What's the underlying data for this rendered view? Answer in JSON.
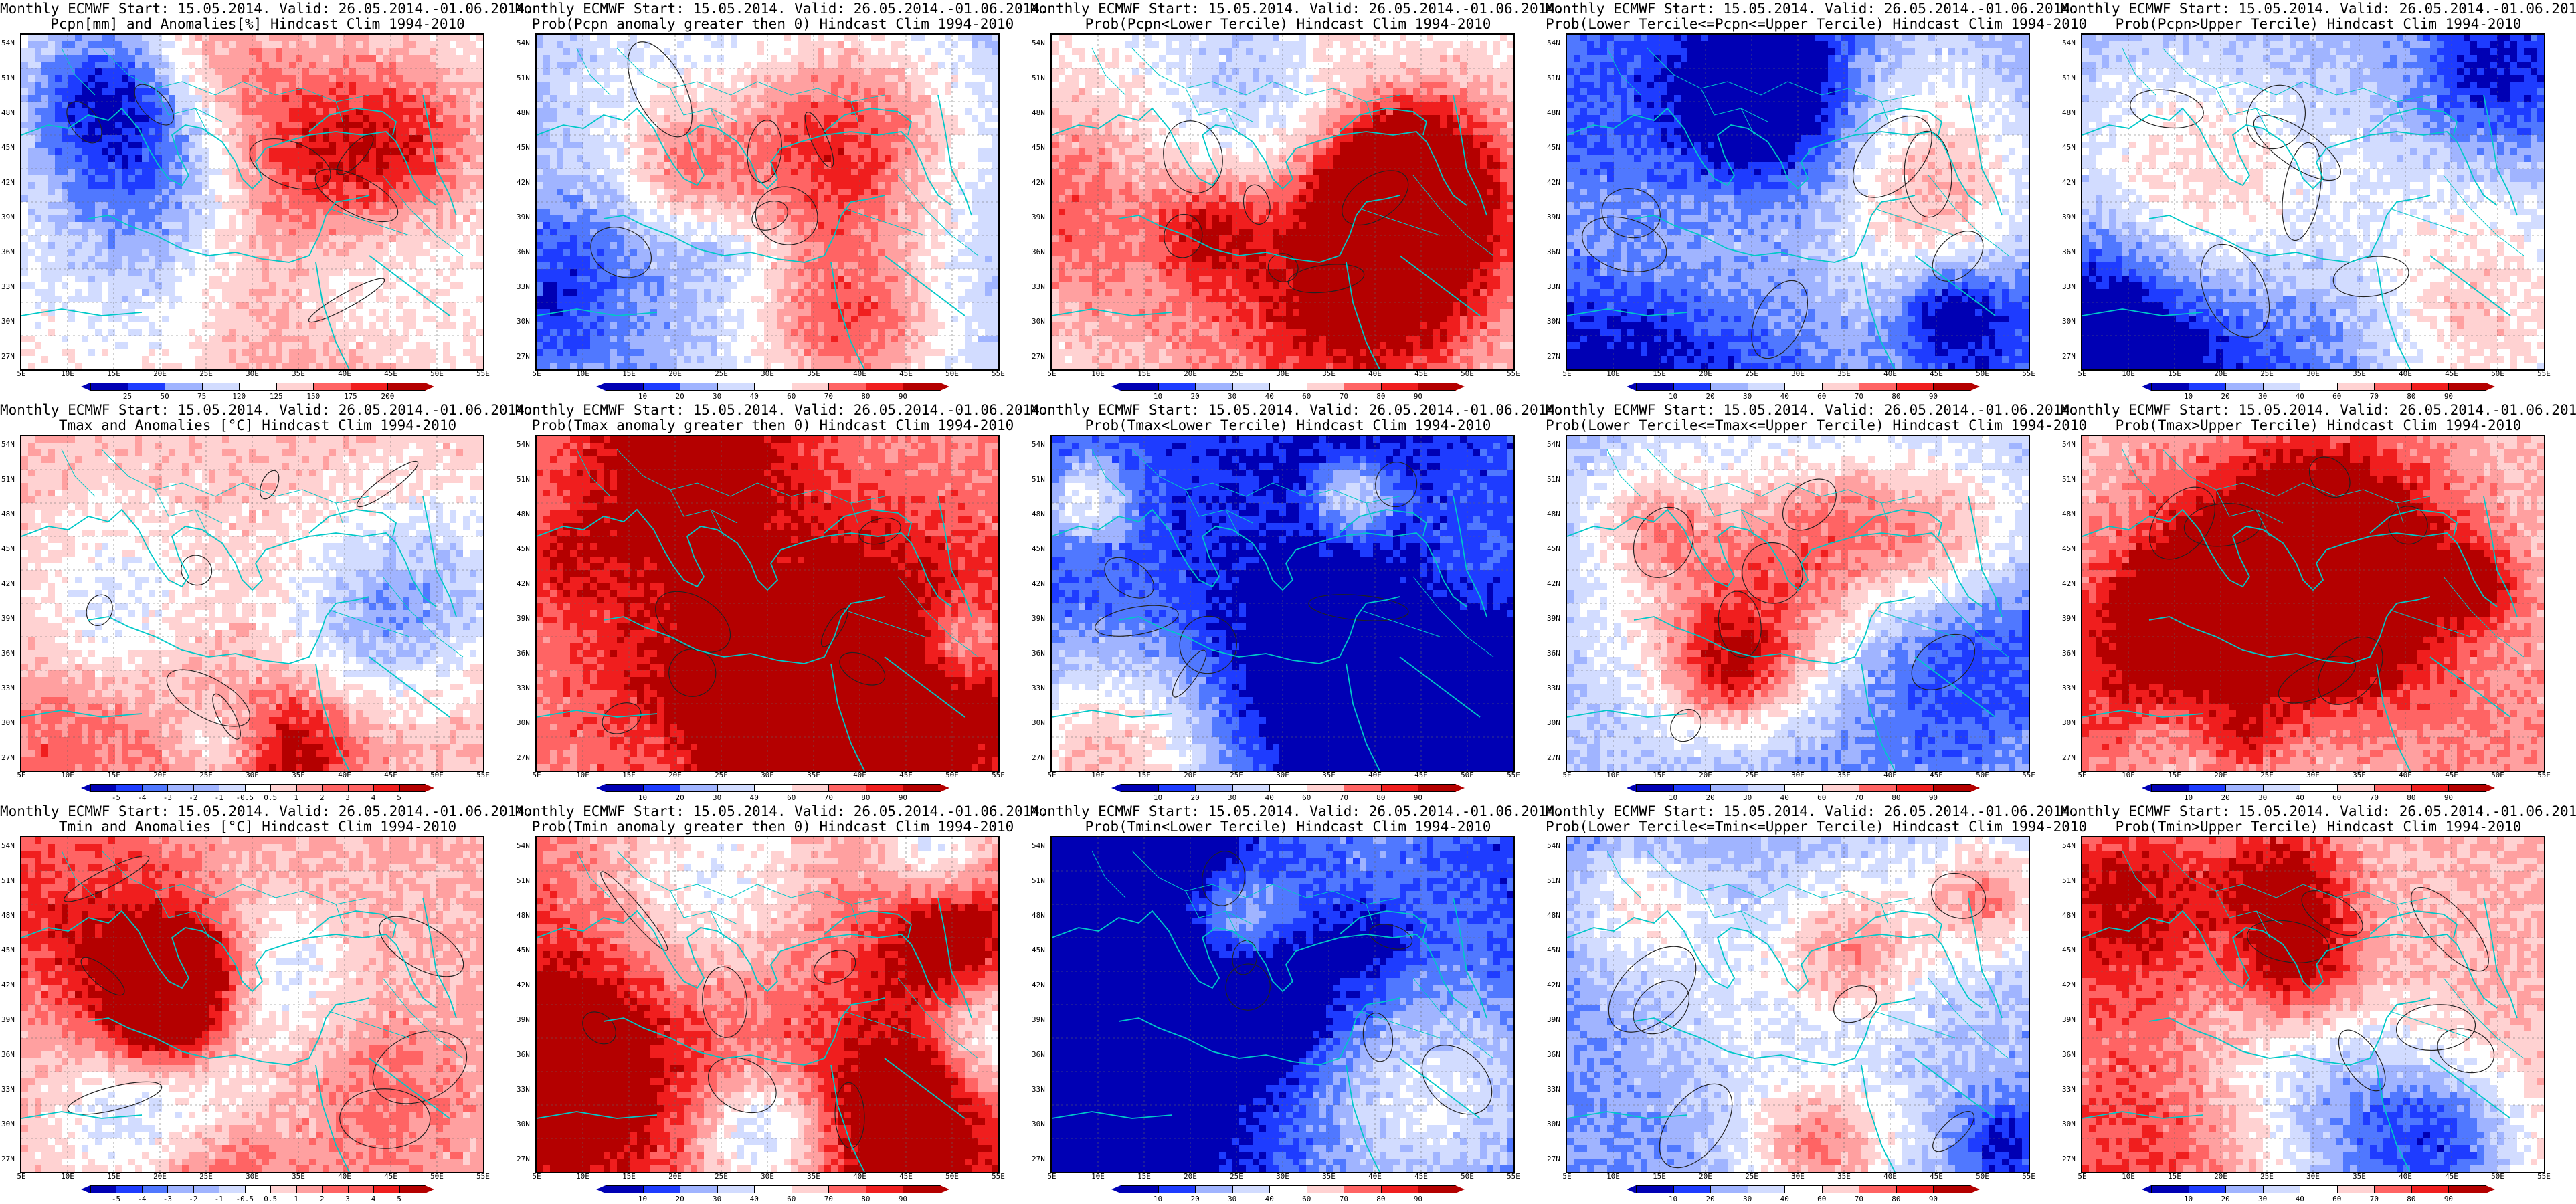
{
  "figure": {
    "rows": [
      {
        "panels": [
          {
            "line1": "Monthly ECMWF Start: 15.05.2014. Valid: 26.05.2014.-01.06.2014.",
            "line2": "Pcpn[mm] and Anomalies[%] Hindcast Clim 1994-2010",
            "scheme": "anom",
            "bias": 0.55,
            "ticks": [
              "25",
              "50",
              "75",
              "120",
              "125",
              "150",
              "175",
              "200"
            ]
          },
          {
            "line1": "Monthly ECMWF Start: 15.05.2014. Valid: 26.05.2014.-01.06.2014.",
            "line2": "Prob(Pcpn anomaly greater then 0) Hindcast Clim 1994-2010",
            "scheme": "prob",
            "bias": 0.35,
            "ticks": [
              "10",
              "20",
              "30",
              "40",
              "60",
              "70",
              "80",
              "90"
            ]
          },
          {
            "line1": "Monthly ECMWF Start: 15.05.2014. Valid: 26.05.2014.-01.06.2014.",
            "line2": "Prob(Pcpn<Lower Tercile) Hindcast Clim 1994-2010",
            "scheme": "prob",
            "bias": 0.5,
            "ticks": [
              "10",
              "20",
              "30",
              "40",
              "60",
              "70",
              "80",
              "90"
            ]
          },
          {
            "line1": "Monthly ECMWF Start: 15.05.2014. Valid: 26.05.2014.-01.06.2014.",
            "line2": "Prob(Lower Tercile<=Pcpn<=Upper Tercile) Hindcast Clim 1994-2010",
            "scheme": "prob",
            "bias": 0.2,
            "ticks": [
              "10",
              "20",
              "30",
              "40",
              "60",
              "70",
              "80",
              "90"
            ]
          },
          {
            "line1": "Monthly ECMWF Start: 15.05.2014. Valid: 26.05.2014.-01.06.2014.",
            "line2": "Prob(Pcpn>Upper Tercile) Hindcast Clim 1994-2010",
            "scheme": "prob",
            "bias": 0.3,
            "ticks": [
              "10",
              "20",
              "30",
              "40",
              "60",
              "70",
              "80",
              "90"
            ]
          }
        ]
      },
      {
        "panels": [
          {
            "line1": "Monthly ECMWF Start: 15.05.2014. Valid: 26.05.2014.-01.06.2014.",
            "line2": "Tmax and Anomalies [°C] Hindcast Clim 1994-2010",
            "scheme": "anom",
            "bias": 0.62,
            "ticks": [
              "-5",
              "-4",
              "-3",
              "-2",
              "-1",
              "-0.5",
              "0.5",
              "1",
              "2",
              "3",
              "4",
              "5"
            ]
          },
          {
            "line1": "Monthly ECMWF Start: 15.05.2014. Valid: 26.05.2014.-01.06.2014.",
            "line2": "Prob(Tmax anomaly greater then 0) Hindcast Clim 1994-2010",
            "scheme": "prob",
            "bias": 0.72,
            "ticks": [
              "10",
              "20",
              "30",
              "40",
              "60",
              "70",
              "80",
              "90"
            ]
          },
          {
            "line1": "Monthly ECMWF Start: 15.05.2014. Valid: 26.05.2014.-01.06.2014.",
            "line2": "Prob(Tmax<Lower Tercile) Hindcast Clim 1994-2010",
            "scheme": "prob",
            "bias": 0.12,
            "ticks": [
              "10",
              "20",
              "30",
              "40",
              "60",
              "70",
              "80",
              "90"
            ]
          },
          {
            "line1": "Monthly ECMWF Start: 15.05.2014. Valid: 26.05.2014.-01.06.2014.",
            "line2": "Prob(Lower Tercile<=Tmax<=Upper Tercile) Hindcast Clim 1994-2010",
            "scheme": "prob",
            "bias": 0.35,
            "ticks": [
              "10",
              "20",
              "30",
              "40",
              "60",
              "70",
              "80",
              "90"
            ]
          },
          {
            "line1": "Monthly ECMWF Start: 15.05.2014. Valid: 26.05.2014.-01.06.2014.",
            "line2": "Prob(Tmax>Upper Tercile) Hindcast Clim 1994-2010",
            "scheme": "prob",
            "bias": 0.6,
            "ticks": [
              "10",
              "20",
              "30",
              "40",
              "60",
              "70",
              "80",
              "90"
            ]
          }
        ]
      },
      {
        "panels": [
          {
            "line1": "Monthly ECMWF Start: 15.05.2014. Valid: 26.05.2014.-01.06.2014.",
            "line2": "Tmin and Anomalies [°C] Hindcast Clim 1994-2010",
            "scheme": "anom",
            "bias": 0.65,
            "ticks": [
              "-5",
              "-4",
              "-3",
              "-2",
              "-1",
              "-0.5",
              "0.5",
              "1",
              "2",
              "3",
              "4",
              "5"
            ]
          },
          {
            "line1": "Monthly ECMWF Start: 15.05.2014. Valid: 26.05.2014.-01.06.2014.",
            "line2": "Prob(Tmin anomaly greater then 0) Hindcast Clim 1994-2010",
            "scheme": "prob",
            "bias": 0.8,
            "ticks": [
              "10",
              "20",
              "30",
              "40",
              "60",
              "70",
              "80",
              "90"
            ]
          },
          {
            "line1": "Monthly ECMWF Start: 15.05.2014. Valid: 26.05.2014.-01.06.2014.",
            "line2": "Prob(Tmin<Lower Tercile) Hindcast Clim 1994-2010",
            "scheme": "prob",
            "bias": 0.1,
            "ticks": [
              "10",
              "20",
              "30",
              "40",
              "60",
              "70",
              "80",
              "90"
            ]
          },
          {
            "line1": "Monthly ECMWF Start: 15.05.2014. Valid: 26.05.2014.-01.06.2014.",
            "line2": "Prob(Lower Tercile<=Tmin<=Upper Tercile) Hindcast Clim 1994-2010",
            "scheme": "prob",
            "bias": 0.25,
            "ticks": [
              "10",
              "20",
              "30",
              "40",
              "60",
              "70",
              "80",
              "90"
            ]
          },
          {
            "line1": "Monthly ECMWF Start: 15.05.2014. Valid: 26.05.2014.-01.06.2014.",
            "line2": "Prob(Tmin>Upper Tercile) Hindcast Clim 1994-2010",
            "scheme": "prob",
            "bias": 0.65,
            "ticks": [
              "10",
              "20",
              "30",
              "40",
              "60",
              "70",
              "80",
              "90"
            ]
          }
        ]
      }
    ],
    "lat_labels": [
      "54N",
      "51N",
      "48N",
      "45N",
      "42N",
      "39N",
      "36N",
      "33N",
      "30N",
      "27N"
    ],
    "lon_labels": [
      "5E",
      "10E",
      "15E",
      "20E",
      "25E",
      "30E",
      "35E",
      "40E",
      "45E",
      "50E",
      "55E"
    ],
    "colors": {
      "blue_dark": "#0000b4",
      "blue": "#1e3cff",
      "blue_mid": "#5078ff",
      "blue_light": "#a0b4ff",
      "blue_pale": "#d2dcff",
      "white": "#ffffff",
      "red_pale": "#ffd2d2",
      "red_light": "#ffa0a0",
      "red_mid": "#ff6464",
      "red": "#f01e1e",
      "red_dark": "#b40000",
      "coast": "#00c8c8"
    }
  }
}
